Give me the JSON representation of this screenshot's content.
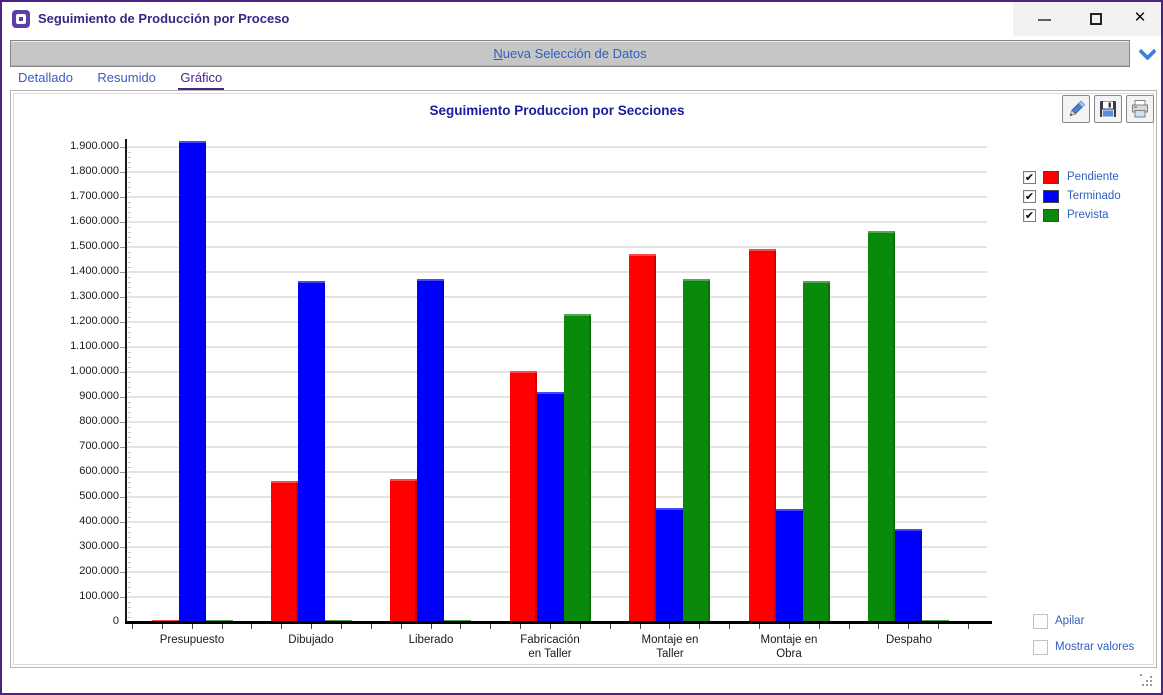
{
  "window": {
    "title": "Seguimiento de Producción por Proceso",
    "controls": {
      "minimize": "minimize",
      "maximize": "maximize",
      "close": "✕"
    }
  },
  "toolbar": {
    "accel": "N",
    "rest": "ueva Selección de Datos",
    "full_label": "Nueva Selección de Datos"
  },
  "tabs": [
    {
      "label": "Detallado",
      "active": false
    },
    {
      "label": "Resumido",
      "active": false
    },
    {
      "label": "Gráfico",
      "active": true
    }
  ],
  "chart_toolbar": [
    {
      "icon": "edit-pencil-icon"
    },
    {
      "icon": "save-floppy-icon"
    },
    {
      "icon": "print-icon"
    }
  ],
  "legend": [
    {
      "label": "Pendiente",
      "color": "#ff0000",
      "checked": true
    },
    {
      "label": "Terminado",
      "color": "#0000ff",
      "checked": true
    },
    {
      "label": "Prevista",
      "color": "#0a8a0a",
      "checked": true
    }
  ],
  "options": [
    {
      "label": "Apilar",
      "checked": false
    },
    {
      "label": "Mostrar valores",
      "checked": false
    }
  ],
  "chart_data": {
    "type": "bar",
    "title": "Seguimiento Produccion por Secciones",
    "categories": [
      "Presupuesto",
      "Dibujado",
      "Liberado",
      "Fabricación en Taller",
      "Montaje en Taller",
      "Montaje en Obra",
      "Despaho"
    ],
    "series": [
      {
        "name": "Pendiente",
        "color": "#ff0000",
        "values": [
          7000,
          565000,
          570000,
          1005000,
          1470000,
          1490000,
          0
        ]
      },
      {
        "name": "Terminado",
        "color": "#0000ff",
        "values": [
          1925000,
          1365000,
          1370000,
          920000,
          455000,
          450000,
          370000
        ]
      },
      {
        "name": "Prevista",
        "color": "#0a8a0a",
        "values": [
          7000,
          5000,
          5000,
          1230000,
          1370000,
          1365000,
          1565000
        ]
      }
    ],
    "ylim": [
      0,
      1920000
    ],
    "ytick_step": 100000,
    "yticks": [
      "0",
      "100.000",
      "200.000",
      "300.000",
      "400.000",
      "500.000",
      "600.000",
      "700.000",
      "800.000",
      "900.000",
      "1.000.000",
      "1.100.000",
      "1.200.000",
      "1.300.000",
      "1.400.000",
      "1.500.000",
      "1.600.000",
      "1.700.000",
      "1.800.000",
      "1.900.000"
    ],
    "grid": true,
    "legend_position": "right",
    "note": "In the Despaho group the tall green Prevista bar is drawn in the first slot (Pendiente is 0) followed by the blue Terminado bar and a tiny green sliver.",
    "series_colors": {
      "red": "#ff0000",
      "blue": "#0000ff",
      "green": "#0a8a0a"
    },
    "groups": [
      {
        "label_lines": [
          "Presupuesto"
        ],
        "bars": [
          {
            "c": "red",
            "v": 7000
          },
          {
            "c": "blue",
            "v": 1925000
          },
          {
            "c": "green",
            "v": 7000
          }
        ]
      },
      {
        "label_lines": [
          "Dibujado"
        ],
        "bars": [
          {
            "c": "red",
            "v": 565000
          },
          {
            "c": "blue",
            "v": 1365000
          },
          {
            "c": "green",
            "v": 5000
          }
        ]
      },
      {
        "label_lines": [
          "Liberado"
        ],
        "bars": [
          {
            "c": "red",
            "v": 570000
          },
          {
            "c": "blue",
            "v": 1370000
          },
          {
            "c": "green",
            "v": 5000
          }
        ]
      },
      {
        "label_lines": [
          "Fabricación",
          "en Taller"
        ],
        "bars": [
          {
            "c": "red",
            "v": 1005000
          },
          {
            "c": "blue",
            "v": 920000
          },
          {
            "c": "green",
            "v": 1230000
          }
        ]
      },
      {
        "label_lines": [
          "Montaje en",
          "Taller"
        ],
        "bars": [
          {
            "c": "red",
            "v": 1470000
          },
          {
            "c": "blue",
            "v": 455000
          },
          {
            "c": "green",
            "v": 1370000
          }
        ]
      },
      {
        "label_lines": [
          "Montaje en",
          "Obra"
        ],
        "bars": [
          {
            "c": "red",
            "v": 1490000
          },
          {
            "c": "blue",
            "v": 450000
          },
          {
            "c": "green",
            "v": 1365000
          }
        ]
      },
      {
        "label_lines": [
          "Despaho"
        ],
        "bars": [
          {
            "c": "green",
            "v": 1565000
          },
          {
            "c": "blue",
            "v": 370000
          },
          {
            "c": "green",
            "v": 8000
          }
        ]
      }
    ]
  }
}
